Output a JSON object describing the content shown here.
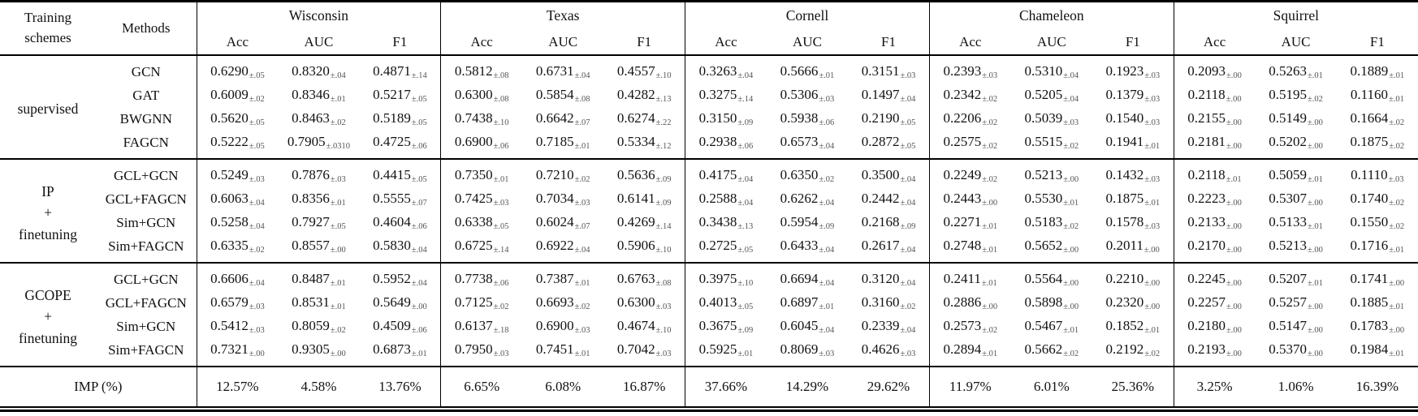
{
  "table": {
    "scheme_header_lines": [
      "Training",
      "schemes"
    ],
    "methods_header": "Methods",
    "groups": [
      "Wisconsin",
      "Texas",
      "Cornell",
      "Chameleon",
      "Squirrel"
    ],
    "metrics": [
      "Acc",
      "AUC",
      "F1"
    ],
    "blocks": [
      {
        "scheme_lines": [
          "supervised"
        ],
        "rows": [
          {
            "method": "GCN",
            "cells": [
              [
                "0.6290",
                "±.05"
              ],
              [
                "0.8320",
                "±.04"
              ],
              [
                "0.4871",
                "±.14"
              ],
              [
                "0.5812",
                "±.08"
              ],
              [
                "0.6731",
                "±.04"
              ],
              [
                "0.4557",
                "±.10"
              ],
              [
                "0.3263",
                "±.04"
              ],
              [
                "0.5666",
                "±.01"
              ],
              [
                "0.3151",
                "±.03"
              ],
              [
                "0.2393",
                "±.03"
              ],
              [
                "0.5310",
                "±.04"
              ],
              [
                "0.1923",
                "±.03"
              ],
              [
                "0.2093",
                "±.00"
              ],
              [
                "0.5263",
                "±.01"
              ],
              [
                "0.1889",
                "±.01"
              ]
            ]
          },
          {
            "method": "GAT",
            "cells": [
              [
                "0.6009",
                "±.02"
              ],
              [
                "0.8346",
                "±.01"
              ],
              [
                "0.5217",
                "±.05"
              ],
              [
                "0.6300",
                "±.08"
              ],
              [
                "0.5854",
                "±.08"
              ],
              [
                "0.4282",
                "±.13"
              ],
              [
                "0.3275",
                "±.14"
              ],
              [
                "0.5306",
                "±.03"
              ],
              [
                "0.1497",
                "±.04"
              ],
              [
                "0.2342",
                "±.02"
              ],
              [
                "0.5205",
                "±.04"
              ],
              [
                "0.1379",
                "±.03"
              ],
              [
                "0.2118",
                "±.00"
              ],
              [
                "0.5195",
                "±.02"
              ],
              [
                "0.1160",
                "±.01"
              ]
            ]
          },
          {
            "method": "BWGNN",
            "cells": [
              [
                "0.5620",
                "±.05"
              ],
              [
                "0.8463",
                "±.02"
              ],
              [
                "0.5189",
                "±.05"
              ],
              [
                "0.7438",
                "±.10"
              ],
              [
                "0.6642",
                "±.07"
              ],
              [
                "0.6274",
                "±.22"
              ],
              [
                "0.3150",
                "±.09"
              ],
              [
                "0.5938",
                "±.06"
              ],
              [
                "0.2190",
                "±.05"
              ],
              [
                "0.2206",
                "±.02"
              ],
              [
                "0.5039",
                "±.03"
              ],
              [
                "0.1540",
                "±.03"
              ],
              [
                "0.2155",
                "±.00"
              ],
              [
                "0.5149",
                "±.00"
              ],
              [
                "0.1664",
                "±.02"
              ]
            ]
          },
          {
            "method": "FAGCN",
            "cells": [
              [
                "0.5222",
                "±.05"
              ],
              [
                "0.7905",
                "±.0310"
              ],
              [
                "0.4725",
                "±.06"
              ],
              [
                "0.6900",
                "±.06"
              ],
              [
                "0.7185",
                "±.01"
              ],
              [
                "0.5334",
                "±.12"
              ],
              [
                "0.2938",
                "±.06"
              ],
              [
                "0.6573",
                "±.04"
              ],
              [
                "0.2872",
                "±.05"
              ],
              [
                "0.2575",
                "±.02"
              ],
              [
                "0.5515",
                "±.02"
              ],
              [
                "0.1941",
                "±.01"
              ],
              [
                "0.2181",
                "±.00"
              ],
              [
                "0.5202",
                "±.00"
              ],
              [
                "0.1875",
                "±.02"
              ]
            ]
          }
        ]
      },
      {
        "scheme_lines": [
          "IP",
          "+",
          "finetuning"
        ],
        "rows": [
          {
            "method": "GCL+GCN",
            "cells": [
              [
                "0.5249",
                "±.03"
              ],
              [
                "0.7876",
                "±.03"
              ],
              [
                "0.4415",
                "±.05"
              ],
              [
                "0.7350",
                "±.01"
              ],
              [
                "0.7210",
                "±.02"
              ],
              [
                "0.5636",
                "±.09"
              ],
              [
                "0.4175",
                "±.04"
              ],
              [
                "0.6350",
                "±.02"
              ],
              [
                "0.3500",
                "±.04"
              ],
              [
                "0.2249",
                "±.02"
              ],
              [
                "0.5213",
                "±.00"
              ],
              [
                "0.1432",
                "±.03"
              ],
              [
                "0.2118",
                "±.01"
              ],
              [
                "0.5059",
                "±.01"
              ],
              [
                "0.1110",
                "±.03"
              ]
            ]
          },
          {
            "method": "GCL+FAGCN",
            "cells": [
              [
                "0.6063",
                "±.04"
              ],
              [
                "0.8356",
                "±.01"
              ],
              [
                "0.5555",
                "±.07"
              ],
              [
                "0.7425",
                "±.03"
              ],
              [
                "0.7034",
                "±.03"
              ],
              [
                "0.6141",
                "±.09"
              ],
              [
                "0.2588",
                "±.04"
              ],
              [
                "0.6262",
                "±.04"
              ],
              [
                "0.2442",
                "±.04"
              ],
              [
                "0.2443",
                "±.00"
              ],
              [
                "0.5530",
                "±.01"
              ],
              [
                "0.1875",
                "±.01"
              ],
              [
                "0.2223",
                "±.00"
              ],
              [
                "0.5307",
                "±.00"
              ],
              [
                "0.1740",
                "±.02"
              ]
            ]
          },
          {
            "method": "Sim+GCN",
            "cells": [
              [
                "0.5258",
                "±.04"
              ],
              [
                "0.7927",
                "±.05"
              ],
              [
                "0.4604",
                "±.06"
              ],
              [
                "0.6338",
                "±.05"
              ],
              [
                "0.6024",
                "±.07"
              ],
              [
                "0.4269",
                "±.14"
              ],
              [
                "0.3438",
                "±.13"
              ],
              [
                "0.5954",
                "±.09"
              ],
              [
                "0.2168",
                "±.09"
              ],
              [
                "0.2271",
                "±.01"
              ],
              [
                "0.5183",
                "±.02"
              ],
              [
                "0.1578",
                "±.03"
              ],
              [
                "0.2133",
                "±.00"
              ],
              [
                "0.5133",
                "±.01"
              ],
              [
                "0.1550",
                "±.02"
              ]
            ]
          },
          {
            "method": "Sim+FAGCN",
            "cells": [
              [
                "0.6335",
                "±.02"
              ],
              [
                "0.8557",
                "±.00"
              ],
              [
                "0.5830",
                "±.04"
              ],
              [
                "0.6725",
                "±.14"
              ],
              [
                "0.6922",
                "±.04"
              ],
              [
                "0.5906",
                "±.10"
              ],
              [
                "0.2725",
                "±.05"
              ],
              [
                "0.6433",
                "±.04"
              ],
              [
                "0.2617",
                "±.04"
              ],
              [
                "0.2748",
                "±.01"
              ],
              [
                "0.5652",
                "±.00"
              ],
              [
                "0.2011",
                "±.00"
              ],
              [
                "0.2170",
                "±.00"
              ],
              [
                "0.5213",
                "±.00"
              ],
              [
                "0.1716",
                "±.01"
              ]
            ]
          }
        ]
      },
      {
        "scheme_lines": [
          "GCOPE",
          "+",
          "finetuning"
        ],
        "rows": [
          {
            "method": "GCL+GCN",
            "cells": [
              [
                "0.6606",
                "±.04"
              ],
              [
                "0.8487",
                "±.01"
              ],
              [
                "0.5952",
                "±.04"
              ],
              [
                "0.7738",
                "±.06"
              ],
              [
                "0.7387",
                "±.01"
              ],
              [
                "0.6763",
                "±.08"
              ],
              [
                "0.3975",
                "±.10"
              ],
              [
                "0.6694",
                "±.04"
              ],
              [
                "0.3120",
                "±.04"
              ],
              [
                "0.2411",
                "±.01"
              ],
              [
                "0.5564",
                "±.00"
              ],
              [
                "0.2210",
                "±.00"
              ],
              [
                "0.2245",
                "±.00"
              ],
              [
                "0.5207",
                "±.01"
              ],
              [
                "0.1741",
                "±.00"
              ]
            ]
          },
          {
            "method": "GCL+FAGCN",
            "cells": [
              [
                "0.6579",
                "±.03"
              ],
              [
                "0.8531",
                "±.01"
              ],
              [
                "0.5649",
                "±.00"
              ],
              [
                "0.7125",
                "±.02"
              ],
              [
                "0.6693",
                "±.02"
              ],
              [
                "0.6300",
                "±.03"
              ],
              [
                "0.4013",
                "±.05"
              ],
              [
                "0.6897",
                "±.01"
              ],
              [
                "0.3160",
                "±.02"
              ],
              [
                "0.2886",
                "±.00"
              ],
              [
                "0.5898",
                "±.00"
              ],
              [
                "0.2320",
                "±.00"
              ],
              [
                "0.2257",
                "±.00"
              ],
              [
                "0.5257",
                "±.00"
              ],
              [
                "0.1885",
                "±.01"
              ]
            ]
          },
          {
            "method": "Sim+GCN",
            "cells": [
              [
                "0.5412",
                "±.03"
              ],
              [
                "0.8059",
                "±.02"
              ],
              [
                "0.4509",
                "±.06"
              ],
              [
                "0.6137",
                "±.18"
              ],
              [
                "0.6900",
                "±.03"
              ],
              [
                "0.4674",
                "±.10"
              ],
              [
                "0.3675",
                "±.09"
              ],
              [
                "0.6045",
                "±.04"
              ],
              [
                "0.2339",
                "±.04"
              ],
              [
                "0.2573",
                "±.02"
              ],
              [
                "0.5467",
                "±.01"
              ],
              [
                "0.1852",
                "±.01"
              ],
              [
                "0.2180",
                "±.00"
              ],
              [
                "0.5147",
                "±.00"
              ],
              [
                "0.1783",
                "±.00"
              ]
            ]
          },
          {
            "method": "Sim+FAGCN",
            "cells": [
              [
                "0.7321",
                "±.00"
              ],
              [
                "0.9305",
                "±.00"
              ],
              [
                "0.6873",
                "±.01"
              ],
              [
                "0.7950",
                "±.03"
              ],
              [
                "0.7451",
                "±.01"
              ],
              [
                "0.7042",
                "±.03"
              ],
              [
                "0.5925",
                "±.01"
              ],
              [
                "0.8069",
                "±.03"
              ],
              [
                "0.4626",
                "±.03"
              ],
              [
                "0.2894",
                "±.01"
              ],
              [
                "0.5662",
                "±.02"
              ],
              [
                "0.2192",
                "±.02"
              ],
              [
                "0.2193",
                "±.00"
              ],
              [
                "0.5370",
                "±.00"
              ],
              [
                "0.1984",
                "±.01"
              ]
            ]
          }
        ]
      }
    ],
    "imp": {
      "label": "IMP (%)",
      "values": [
        "12.57%",
        "4.58%",
        "13.76%",
        "6.65%",
        "6.08%",
        "16.87%",
        "37.66%",
        "14.29%",
        "29.62%",
        "11.97%",
        "6.01%",
        "25.36%",
        "3.25%",
        "1.06%",
        "16.39%"
      ]
    }
  }
}
